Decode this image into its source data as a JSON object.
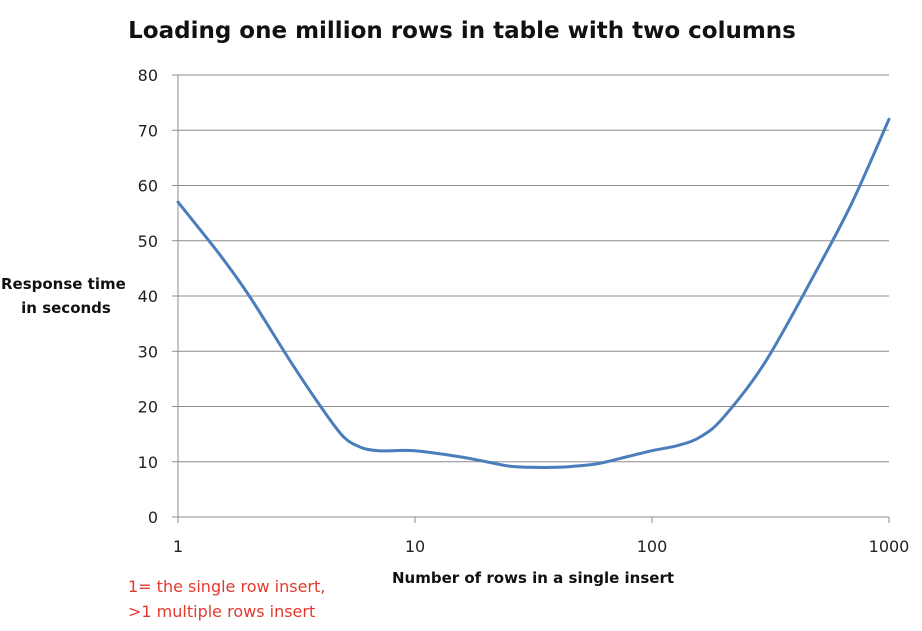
{
  "chart_data": {
    "type": "line",
    "title": "Loading one million rows in table with two columns",
    "xlabel": "Number of rows in a single insert",
    "ylabel_lines": [
      "Response time",
      "in seconds"
    ],
    "x_scale": "log",
    "xlim": [
      1,
      1000
    ],
    "ylim": [
      0,
      80
    ],
    "x_ticks": [
      1,
      10,
      100,
      1000
    ],
    "x_tick_labels": [
      "1",
      "10",
      "100",
      "1000"
    ],
    "y_ticks": [
      0,
      10,
      20,
      30,
      40,
      50,
      60,
      70,
      80
    ],
    "y_tick_labels": [
      "0",
      "10",
      "20",
      "30",
      "40",
      "50",
      "60",
      "70",
      "80"
    ],
    "grid": "horizontal",
    "legend": "none",
    "series": [
      {
        "color": "#4a7ebb",
        "points": [
          [
            1,
            57
          ],
          [
            1.5,
            47.5
          ],
          [
            2,
            40
          ],
          [
            3,
            28
          ],
          [
            4,
            20
          ],
          [
            5,
            14.5
          ],
          [
            6,
            12.5
          ],
          [
            7,
            12
          ],
          [
            8,
            12
          ],
          [
            10,
            12
          ],
          [
            15,
            11
          ],
          [
            20,
            10
          ],
          [
            25,
            9.2
          ],
          [
            30,
            9
          ],
          [
            40,
            9
          ],
          [
            50,
            9.3
          ],
          [
            60,
            9.7
          ],
          [
            80,
            11
          ],
          [
            100,
            12
          ],
          [
            130,
            13
          ],
          [
            160,
            14.5
          ],
          [
            200,
            18
          ],
          [
            300,
            28
          ],
          [
            500,
            45
          ],
          [
            700,
            57
          ],
          [
            1000,
            72
          ]
        ]
      }
    ],
    "annotations": [
      "1= the single row  insert,",
      ">1 multiple rows insert"
    ]
  }
}
